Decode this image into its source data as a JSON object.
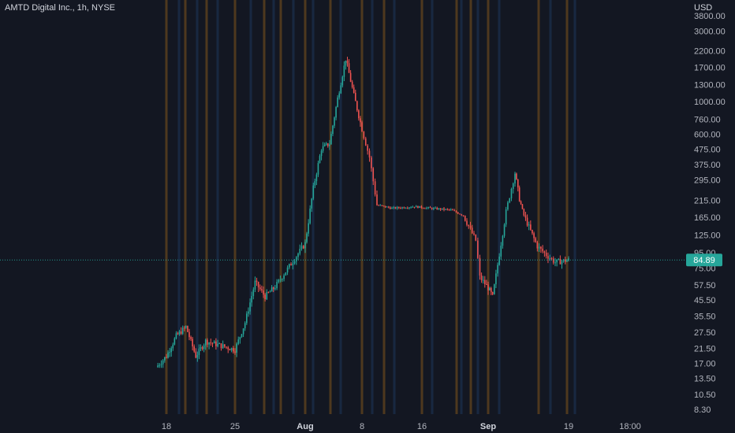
{
  "legend": {
    "title": "AMTD Digital Inc., 1h, NYSE"
  },
  "price_axis": {
    "currency": "USD"
  },
  "last_price": {
    "label": "84.89",
    "value": 84.89
  },
  "colors": {
    "background": "#131722",
    "up": "#26a69a",
    "down": "#ef5350",
    "badge": "#26a69a",
    "session_band_orange": "#8a5a1a",
    "session_band_blue": "#1e3a5f"
  },
  "chart_data": {
    "type": "candlestick",
    "scale": "log",
    "grid": false,
    "y_ticks": [
      "3800.00",
      "3000.00",
      "2200.00",
      "1700.00",
      "1300.00",
      "1000.00",
      "760.00",
      "600.00",
      "475.00",
      "375.00",
      "295.00",
      "215.00",
      "165.00",
      "125.00",
      "95.00",
      "75.00",
      "57.50",
      "45.50",
      "35.50",
      "27.50",
      "21.50",
      "17.00",
      "13.50",
      "10.50",
      "8.30"
    ],
    "x_ticks": [
      {
        "label": "18",
        "date": "2022-07-18",
        "bold": false
      },
      {
        "label": "25",
        "date": "2022-07-25",
        "bold": false
      },
      {
        "label": "Aug",
        "date": "2022-08-01",
        "bold": true
      },
      {
        "label": "8",
        "date": "2022-08-08",
        "bold": false
      },
      {
        "label": "16",
        "date": "2022-08-16",
        "bold": false
      },
      {
        "label": "Sep",
        "date": "2022-09-01",
        "bold": true
      },
      {
        "label": "19",
        "date": "2022-09-19",
        "bold": false
      },
      {
        "label": "18:00",
        "date": "2022-09-20 18:00",
        "bold": false
      }
    ],
    "close_path": [
      [
        "2022-07-15",
        16
      ],
      [
        "2022-07-18",
        19
      ],
      [
        "2022-07-19",
        26
      ],
      [
        "2022-07-20",
        30
      ],
      [
        "2022-07-21",
        19
      ],
      [
        "2022-07-22",
        24
      ],
      [
        "2022-07-25",
        21
      ],
      [
        "2022-07-26",
        32
      ],
      [
        "2022-07-27",
        60
      ],
      [
        "2022-07-28",
        48
      ],
      [
        "2022-07-29",
        56
      ],
      [
        "2022-08-01",
        110
      ],
      [
        "2022-08-02",
        260
      ],
      [
        "2022-08-03",
        480
      ],
      [
        "2022-08-04",
        520
      ],
      [
        "2022-08-05",
        1050
      ],
      [
        "2022-08-06",
        1950
      ],
      [
        "2022-08-07",
        1100
      ],
      [
        "2022-08-08",
        650
      ],
      [
        "2022-08-09",
        420
      ],
      [
        "2022-08-10",
        200
      ],
      [
        "2022-08-12",
        190
      ],
      [
        "2022-08-15",
        195
      ],
      [
        "2022-08-18",
        190
      ],
      [
        "2022-08-23",
        185
      ],
      [
        "2022-08-26",
        170
      ],
      [
        "2022-08-29",
        115
      ],
      [
        "2022-08-30",
        65
      ],
      [
        "2022-09-01",
        55
      ],
      [
        "2022-09-02",
        48
      ],
      [
        "2022-09-05",
        180
      ],
      [
        "2022-09-07",
        330
      ],
      [
        "2022-09-08",
        220
      ],
      [
        "2022-09-09",
        170
      ],
      [
        "2022-09-12",
        105
      ],
      [
        "2022-09-14",
        92
      ],
      [
        "2022-09-16",
        82
      ],
      [
        "2022-09-19",
        84.89
      ]
    ]
  }
}
